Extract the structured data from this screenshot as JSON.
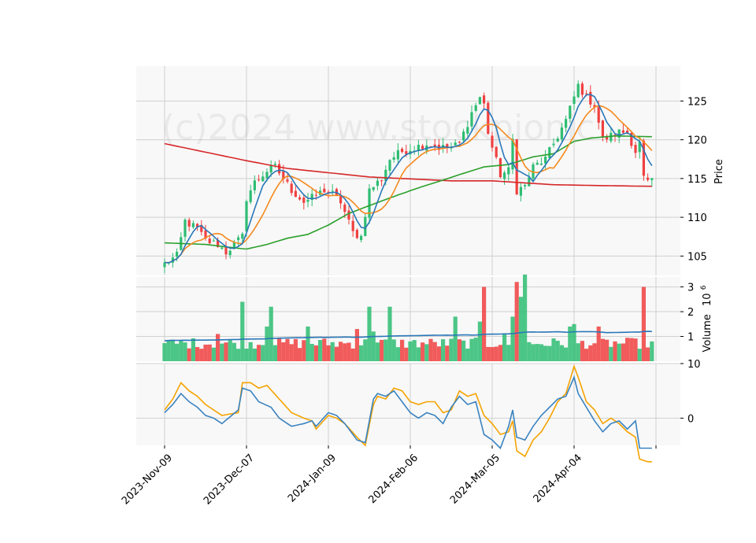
{
  "chart_data": {
    "type": "candlestick",
    "watermark": "(c)2024 www.stockpionic",
    "x_tick_labels": [
      "2023-Nov-09",
      "2023-Dec-07",
      "2024-Jan-09",
      "2024-Feb-06",
      "2024-Mar-05",
      "2024-Apr-04"
    ],
    "x_tick_indices": [
      0,
      20,
      40,
      60,
      80,
      100
    ],
    "num_sessions": 120,
    "grid": true,
    "colors": {
      "up": "#2ebd72",
      "down": "#f04040",
      "ma_short": "#2a77b8",
      "ma_medium": "#f5891d",
      "ma_long": "#2ca02c",
      "ma_200": "#d62728",
      "volume_ma": "#2a77b8",
      "osc_fast": "#3a83c0",
      "osc_slow": "#f5a300",
      "panel_bg": "#f8f8f8",
      "grid": "#d0d0d0"
    },
    "price_panel": {
      "ylabel": "Price",
      "ylim": [
        102.5,
        129.5
      ],
      "yticks": [
        105,
        110,
        115,
        120,
        125
      ],
      "yticks_labels": [
        "105",
        "110",
        "115",
        "120",
        "125"
      ]
    },
    "volume_panel": {
      "ylabel": "Volume  10^6",
      "ylabel_text": "Volume",
      "ylabel_exp": "10",
      "ylabel_exp_power": "6",
      "ylim": [
        0,
        3.4
      ],
      "yticks": [
        1,
        2,
        3
      ],
      "yticks_labels": [
        "1",
        "2",
        "3"
      ]
    },
    "oscillator_panel": {
      "ylim": [
        -5,
        10
      ],
      "yticks": [
        0,
        10
      ],
      "yticks_labels": [
        "0",
        "10"
      ]
    },
    "price_anchors": [
      [
        0,
        104.0
      ],
      [
        3,
        105.0
      ],
      [
        5,
        109.5
      ],
      [
        8,
        108.5
      ],
      [
        10,
        107.0
      ],
      [
        13,
        106.5
      ],
      [
        15,
        105.5
      ],
      [
        17,
        106.5
      ],
      [
        19,
        107.5
      ],
      [
        20,
        112.5
      ],
      [
        22,
        114.5
      ],
      [
        25,
        116.0
      ],
      [
        27,
        116.5
      ],
      [
        29,
        115.0
      ],
      [
        31,
        113.5
      ],
      [
        34,
        112.0
      ],
      [
        36,
        112.5
      ],
      [
        39,
        113.5
      ],
      [
        41,
        113.0
      ],
      [
        43,
        112.0
      ],
      [
        46,
        108.0
      ],
      [
        48,
        107.5
      ],
      [
        50,
        113.5
      ],
      [
        53,
        115.0
      ],
      [
        55,
        117.5
      ],
      [
        58,
        118.5
      ],
      [
        61,
        119.0
      ],
      [
        64,
        119.5
      ],
      [
        67,
        119.0
      ],
      [
        70,
        119.0
      ],
      [
        72,
        119.5
      ],
      [
        75,
        123.5
      ],
      [
        77,
        125.5
      ],
      [
        78,
        124.5
      ],
      [
        79,
        121.0
      ],
      [
        80,
        119.0
      ],
      [
        82,
        115.5
      ],
      [
        84,
        116.0
      ],
      [
        85,
        120.0
      ],
      [
        86,
        113.5
      ],
      [
        88,
        114.0
      ],
      [
        90,
        116.5
      ],
      [
        93,
        117.5
      ],
      [
        95,
        119.5
      ],
      [
        98,
        122.5
      ],
      [
        100,
        125.5
      ],
      [
        101,
        127.0
      ],
      [
        103,
        125.5
      ],
      [
        105,
        124.5
      ],
      [
        107,
        120.0
      ],
      [
        109,
        120.5
      ],
      [
        111,
        121.0
      ],
      [
        113,
        121.0
      ],
      [
        115,
        118.5
      ],
      [
        116,
        119.5
      ],
      [
        117,
        115.0
      ],
      [
        118,
        114.5
      ]
    ],
    "volume_spikes": {
      "13": 1.1,
      "19": 2.4,
      "25": 1.4,
      "26": 2.2,
      "35": 1.4,
      "47": 1.3,
      "50": 2.2,
      "51": 1.2,
      "55": 2.2,
      "71": 1.8,
      "77": 1.6,
      "78": 3.0,
      "86": 3.2,
      "87": 2.6,
      "88": 3.5,
      "83": 1.1,
      "85": 1.8,
      "99": 1.4,
      "100": 1.5,
      "106": 1.4,
      "117": 3.0
    },
    "osc_fast_anchors": [
      [
        0,
        1.0
      ],
      [
        2,
        2.5
      ],
      [
        4,
        4.5
      ],
      [
        6,
        3.0
      ],
      [
        8,
        2.0
      ],
      [
        10,
        0.5
      ],
      [
        12,
        0.0
      ],
      [
        14,
        -1.0
      ],
      [
        18,
        1.5
      ],
      [
        19,
        5.5
      ],
      [
        21,
        5.0
      ],
      [
        23,
        3.0
      ],
      [
        26,
        2.0
      ],
      [
        28,
        0.0
      ],
      [
        31,
        -1.5
      ],
      [
        34,
        -1.0
      ],
      [
        36,
        -0.5
      ],
      [
        37,
        -1.5
      ],
      [
        40,
        1.0
      ],
      [
        42,
        0.5
      ],
      [
        44,
        -1.0
      ],
      [
        47,
        -4.0
      ],
      [
        49,
        -4.5
      ],
      [
        51,
        3.5
      ],
      [
        52,
        4.5
      ],
      [
        54,
        4.0
      ],
      [
        56,
        5.0
      ],
      [
        58,
        3.0
      ],
      [
        60,
        1.0
      ],
      [
        62,
        0.0
      ],
      [
        64,
        1.0
      ],
      [
        66,
        0.5
      ],
      [
        68,
        -1.0
      ],
      [
        70,
        2.0
      ],
      [
        72,
        4.0
      ],
      [
        74,
        2.5
      ],
      [
        76,
        3.0
      ],
      [
        78,
        -3.0
      ],
      [
        80,
        -4.0
      ],
      [
        82,
        -5.5
      ],
      [
        84,
        -1.5
      ],
      [
        85,
        1.5
      ],
      [
        86,
        -3.5
      ],
      [
        88,
        -4.0
      ],
      [
        90,
        -1.5
      ],
      [
        92,
        0.5
      ],
      [
        94,
        2.0
      ],
      [
        96,
        3.5
      ],
      [
        98,
        4.0
      ],
      [
        100,
        7.5
      ],
      [
        101,
        4.5
      ],
      [
        103,
        2.0
      ],
      [
        105,
        -0.5
      ],
      [
        107,
        -2.5
      ],
      [
        109,
        -1.0
      ],
      [
        111,
        -0.5
      ],
      [
        113,
        -2.0
      ],
      [
        115,
        -0.5
      ],
      [
        116,
        -5.5
      ],
      [
        118,
        -5.5
      ]
    ],
    "osc_slow_anchors": [
      [
        0,
        1.5
      ],
      [
        2,
        3.5
      ],
      [
        4,
        6.5
      ],
      [
        6,
        5.0
      ],
      [
        8,
        4.0
      ],
      [
        10,
        2.5
      ],
      [
        12,
        1.5
      ],
      [
        14,
        0.5
      ],
      [
        18,
        1.0
      ],
      [
        19,
        6.5
      ],
      [
        21,
        6.5
      ],
      [
        23,
        5.5
      ],
      [
        25,
        6.0
      ],
      [
        28,
        3.5
      ],
      [
        31,
        1.0
      ],
      [
        34,
        0.0
      ],
      [
        36,
        -0.5
      ],
      [
        37,
        -2.0
      ],
      [
        40,
        0.5
      ],
      [
        42,
        0.0
      ],
      [
        44,
        -1.0
      ],
      [
        47,
        -3.5
      ],
      [
        49,
        -5.0
      ],
      [
        51,
        2.5
      ],
      [
        52,
        4.0
      ],
      [
        54,
        3.5
      ],
      [
        56,
        5.5
      ],
      [
        58,
        5.0
      ],
      [
        60,
        3.0
      ],
      [
        62,
        2.5
      ],
      [
        64,
        3.0
      ],
      [
        66,
        3.0
      ],
      [
        68,
        1.0
      ],
      [
        70,
        1.5
      ],
      [
        72,
        5.0
      ],
      [
        74,
        4.0
      ],
      [
        76,
        4.5
      ],
      [
        78,
        0.5
      ],
      [
        80,
        -1.0
      ],
      [
        82,
        -3.0
      ],
      [
        84,
        -2.5
      ],
      [
        85,
        -0.5
      ],
      [
        86,
        -6.0
      ],
      [
        88,
        -7.0
      ],
      [
        90,
        -4.0
      ],
      [
        92,
        -2.5
      ],
      [
        94,
        0.0
      ],
      [
        96,
        3.0
      ],
      [
        98,
        4.5
      ],
      [
        100,
        9.5
      ],
      [
        101,
        7.5
      ],
      [
        103,
        3.0
      ],
      [
        105,
        1.5
      ],
      [
        107,
        -1.0
      ],
      [
        109,
        0.0
      ],
      [
        111,
        -1.0
      ],
      [
        113,
        -2.5
      ],
      [
        115,
        -3.5
      ],
      [
        116,
        -7.5
      ],
      [
        118,
        -8.0
      ]
    ]
  }
}
